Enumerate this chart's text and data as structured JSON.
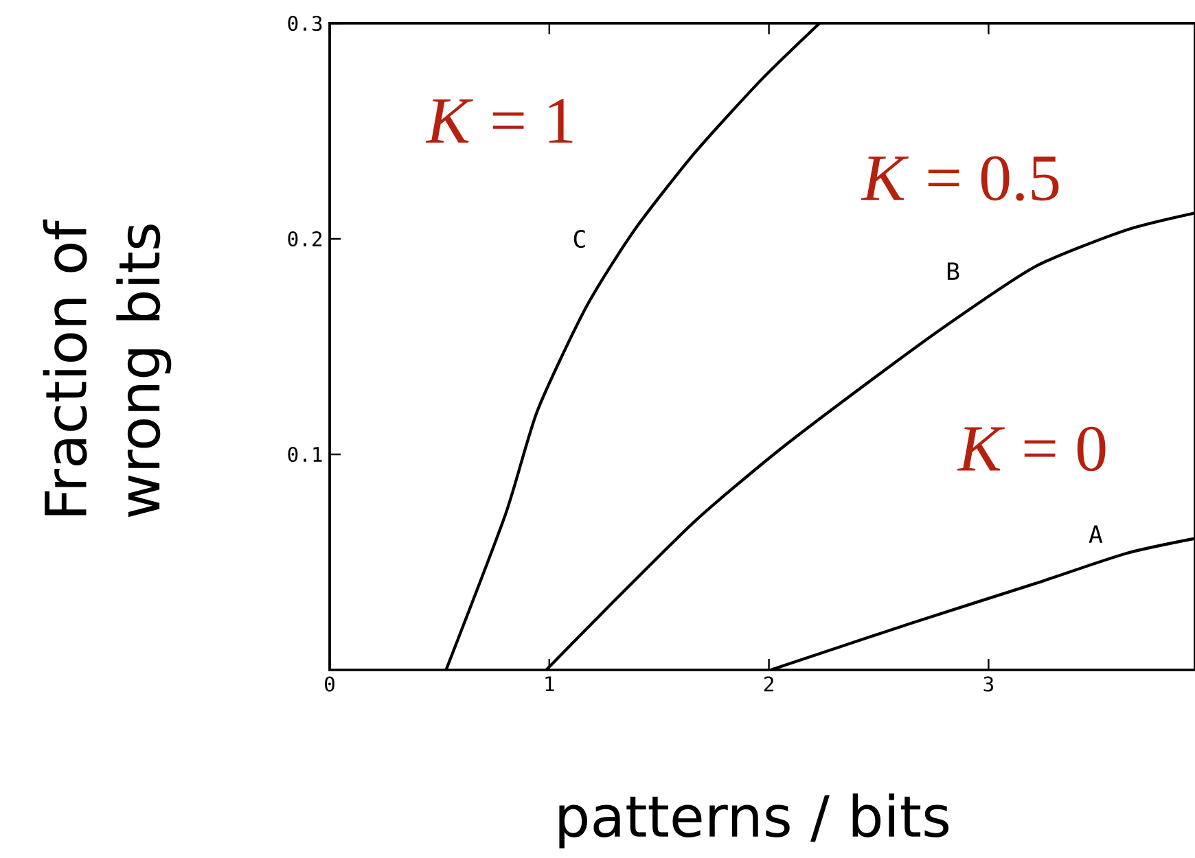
{
  "chart_data": {
    "type": "line",
    "xlabel": "patterns / bits",
    "ylabel": "Fraction of wrong bits",
    "xlim": [
      0,
      3.94
    ],
    "ylim": [
      0,
      0.3
    ],
    "xticks": [
      0,
      1,
      2,
      3
    ],
    "yticks": [
      0.1,
      0.2,
      0.3
    ],
    "grid": false,
    "legend": false,
    "marker": "none",
    "line_style": "solid",
    "annotations": [
      "*K* = 1",
      "*K* = 0.5",
      "*K* = 0"
    ],
    "series": [
      {
        "name": "C",
        "color": "#000000",
        "x": [
          0.53,
          0.8,
          0.945,
          1.166,
          1.387,
          1.663,
          1.967,
          2.23
        ],
        "values": [
          0,
          0.072,
          0.12,
          0.168,
          0.204,
          0.24,
          0.274,
          0.3
        ]
      },
      {
        "name": "B",
        "color": "#000000",
        "x": [
          0.986,
          1.276,
          1.663,
          2.022,
          2.381,
          2.796,
          3.21,
          3.624,
          3.94
        ],
        "values": [
          0,
          0.03,
          0.069,
          0.1,
          0.128,
          0.159,
          0.187,
          0.204,
          0.212
        ]
      },
      {
        "name": "A",
        "color": "#000000",
        "x": [
          2.008,
          2.657,
          3.21,
          3.624,
          3.94
        ],
        "values": [
          0,
          0.022,
          0.04,
          0.054,
          0.061
        ]
      }
    ]
  }
}
